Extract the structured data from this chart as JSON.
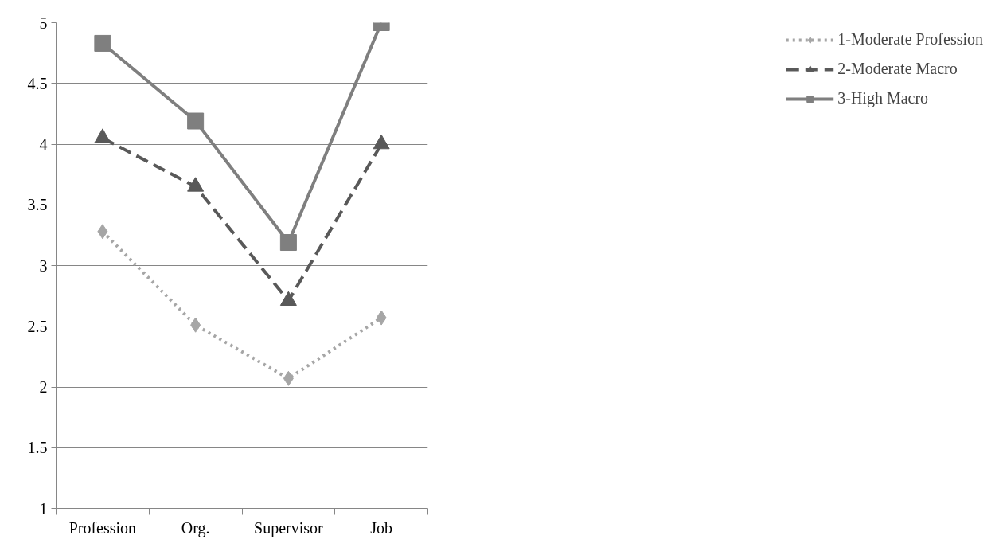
{
  "chart_data": {
    "type": "line",
    "categories": [
      "Profession",
      "Org.",
      "Supervisor",
      "Job"
    ],
    "ylim": [
      1,
      5
    ],
    "yticks": [
      1,
      1.5,
      2,
      2.5,
      3,
      3.5,
      4,
      4.5,
      5
    ],
    "grid": "y",
    "legend": "right",
    "series": [
      {
        "name": "1-Moderate Profession",
        "color": "#a6a6a6",
        "marker": "diamond",
        "line_style": "dotted",
        "values": [
          3.28,
          2.51,
          2.07,
          2.57
        ]
      },
      {
        "name": "2-Moderate Macro",
        "color": "#595959",
        "marker": "triangle",
        "line_style": "dashed",
        "values": [
          4.05,
          3.65,
          2.71,
          4.0
        ]
      },
      {
        "name": "3-High Macro",
        "color": "#7f7f7f",
        "marker": "square",
        "line_style": "solid",
        "values": [
          4.83,
          4.19,
          3.19,
          5.0
        ]
      }
    ]
  }
}
